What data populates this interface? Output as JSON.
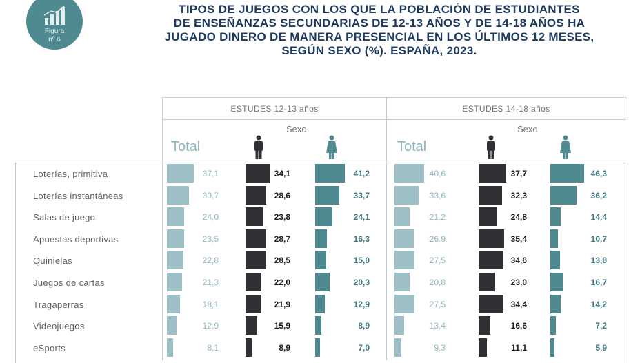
{
  "badge": {
    "line1": "Figura",
    "line2": "nº 6"
  },
  "title": [
    "TIPOS DE JUEGOS CON LOS QUE LA POBLACIÓN DE ESTUDIANTES",
    "DE ENSEÑANZAS SECUNDARIAS DE 12-13 AÑOS Y DE 14-18 AÑOS HA",
    "JUGADO DINERO DE MANERA PRESENCIAL EN LOS ÚLTIMOS 12 MESES,",
    "SEGÚN SEXO (%). ESPAÑA, 2023."
  ],
  "colors": {
    "total": "#9cc0c6",
    "hombres": "#2f3135",
    "mujeres": "#4f8a90",
    "title": "#1e3a5f"
  },
  "chart_data": {
    "type": "bar",
    "title": "TIPOS DE JUEGOS CON LOS QUE LA POBLACIÓN DE ESTUDIANTES DE ENSEÑANZAS SECUNDARIAS DE 12-13 AÑOS Y DE 14-18 AÑOS HA JUGADO DINERO DE MANERA PRESENCIAL EN LOS ÚLTIMOS 12 MESES, SEGÚN SEXO (%). ESPAÑA, 2023.",
    "categories": [
      "Loterías, primitiva",
      "Loterías instantáneas",
      "Salas de juego",
      "Apuestas deportivas",
      "Quinielas",
      "Juegos de cartas",
      "Tragaperras",
      "Videojuegos",
      "eSports"
    ],
    "sexo_label": "Sexo",
    "total_label": "Total",
    "groups": [
      {
        "name": "ESTUDES 12-13 años",
        "series": [
          {
            "name": "Total",
            "values": [
              37.1,
              30.7,
              24.0,
              23.5,
              22.8,
              21.3,
              18.1,
              12.9,
              8.1
            ]
          },
          {
            "values": [
              34.1,
              28.6,
              23.8,
              28.7,
              28.5,
              22.0,
              21.9,
              15.9,
              8.9
            ]
          },
          {
            "values": [
              41.2,
              33.7,
              24.1,
              16.3,
              15.0,
              20.3,
              12.9,
              8.9,
              7.0
            ]
          }
        ]
      },
      {
        "name": "ESTUDES 14-18 años",
        "series": [
          {
            "name": "Total",
            "values": [
              40.6,
              33.6,
              21.2,
              26.9,
              27.5,
              20.8,
              27.5,
              13.4,
              9.3
            ]
          },
          {
            "values": [
              37.7,
              32.3,
              24.8,
              35.4,
              34.6,
              23.0,
              34.4,
              16.6,
              11.1
            ]
          },
          {
            "values": [
              46.3,
              36.2,
              14.4,
              10.7,
              13.8,
              16.7,
              14.2,
              7.2,
              5.9
            ]
          }
        ]
      }
    ]
  }
}
